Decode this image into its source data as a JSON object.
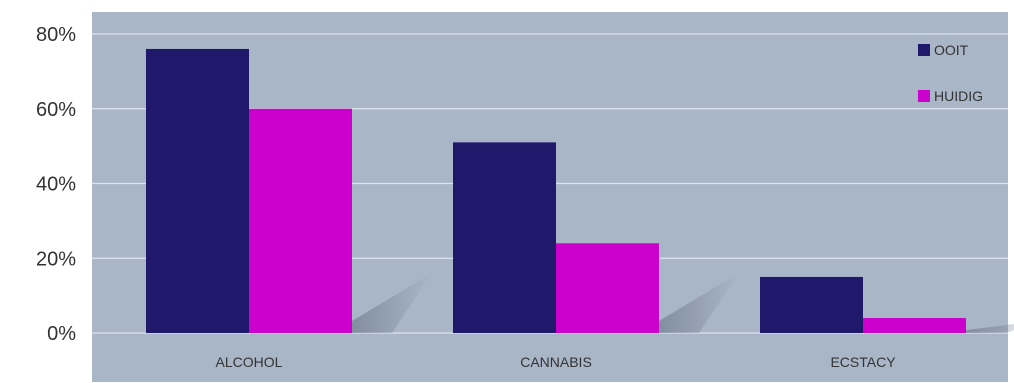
{
  "chart_data": {
    "type": "bar",
    "title": "",
    "xlabel": "",
    "ylabel": "",
    "categories": [
      "ALCOHOL",
      "CANNABIS",
      "ECSTACY"
    ],
    "series": [
      {
        "name": "OOIT",
        "values": [
          76,
          51,
          15
        ],
        "color": "#20186a"
      },
      {
        "name": "HUIDIG",
        "values": [
          60,
          24,
          4
        ],
        "color": "#cc00cc"
      }
    ],
    "ylim": [
      0,
      80
    ],
    "yticks": [
      0,
      20,
      40,
      60,
      80
    ],
    "ytick_labels": [
      "0%",
      "20%",
      "40%",
      "60%",
      "80%"
    ],
    "grid": true,
    "legend_position": "top-right",
    "plot_background": "#a9b6c8"
  }
}
